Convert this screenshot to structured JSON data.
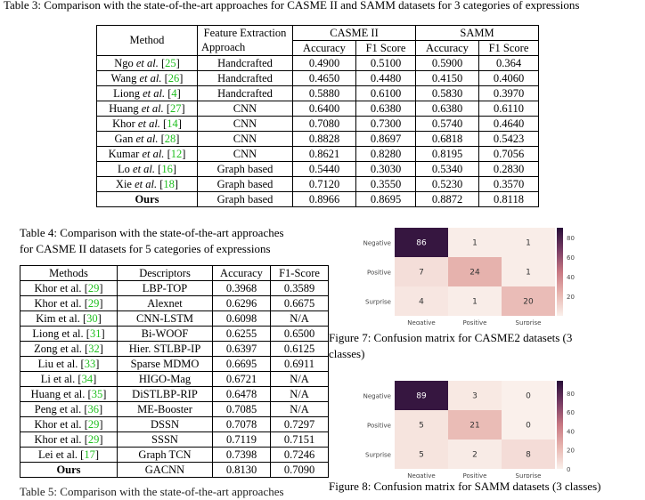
{
  "table3": {
    "caption": "Table 3: Comparison with the state-of-the-art approaches for CASME II and SAMM datasets for 3 categories of expressions",
    "header": {
      "method": "Method",
      "feature_line1": "Feature Extraction",
      "feature_line2": "Approach",
      "casme": "CASME II",
      "samm": "SAMM",
      "accuracy": "Accuracy",
      "f1": "F1 Score"
    },
    "rows": [
      {
        "name": "Ngo",
        "etal": "et al.",
        "cite": "25",
        "approach": "Handcrafted",
        "casme_acc": "0.4900",
        "casme_f1": "0.5100",
        "samm_acc": "0.5900",
        "samm_f1": "0.364"
      },
      {
        "name": "Wang",
        "etal": "et al.",
        "cite": "26",
        "approach": "Handcrafted",
        "casme_acc": "0.4650",
        "casme_f1": "0.4480",
        "samm_acc": "0.4150",
        "samm_f1": "0.4060"
      },
      {
        "name": "Liong",
        "etal": "et al.",
        "cite": "4",
        "approach": "Handcrafted",
        "casme_acc": "0.5880",
        "casme_f1": "0.6100",
        "samm_acc": "0.5830",
        "samm_f1": "0.3970"
      },
      {
        "name": "Huang",
        "etal": "et al.",
        "cite": "27",
        "approach": "CNN",
        "casme_acc": "0.6400",
        "casme_f1": "0.6380",
        "samm_acc": "0.6380",
        "samm_f1": "0.6110"
      },
      {
        "name": "Khor",
        "etal": "et al.",
        "cite": "14",
        "approach": "CNN",
        "casme_acc": "0.7080",
        "casme_f1": "0.7300",
        "samm_acc": "0.5740",
        "samm_f1": "0.4640"
      },
      {
        "name": "Gan",
        "etal": "et al.",
        "cite": "28",
        "approach": "CNN",
        "casme_acc": "0.8828",
        "casme_f1": "0.8697",
        "samm_acc": "0.6818",
        "samm_f1": "0.5423"
      },
      {
        "name": "Kumar",
        "etal": "et al.",
        "cite": "12",
        "approach": "CNN",
        "casme_acc": "0.8621",
        "casme_f1": "0.8280",
        "samm_acc": "0.8195",
        "samm_f1": "0.7056"
      },
      {
        "name": "Lo",
        "etal": "et al.",
        "cite": "16",
        "approach": "Graph based",
        "casme_acc": "0.5440",
        "casme_f1": "0.3030",
        "samm_acc": "0.5340",
        "samm_f1": "0.2830"
      },
      {
        "name": "Xie",
        "etal": "et al.",
        "cite": "18",
        "approach": "Graph based",
        "casme_acc": "0.7120",
        "casme_f1": "0.3550",
        "samm_acc": "0.5230",
        "samm_f1": "0.3570"
      },
      {
        "name": "Ours",
        "etal": "",
        "cite": "",
        "approach": "Graph based",
        "casme_acc": "0.8966",
        "casme_f1": "0.8695",
        "samm_acc": "0.8872",
        "samm_f1": "0.8118"
      }
    ]
  },
  "table4": {
    "caption_line1": "Table 4:  Comparison with the state-of-the-art approaches",
    "caption_line2": "for CASME II datasets for 5 categories of expressions",
    "header": {
      "methods": "Methods",
      "descriptors": "Descriptors",
      "accuracy": "Accuracy",
      "f1": "F1-Score"
    },
    "rows": [
      {
        "name": "Khor et al.",
        "cite": "29",
        "desc": "LBP-TOP",
        "acc": "0.3968",
        "f1": "0.3589"
      },
      {
        "name": "Khor et al.",
        "cite": "29",
        "desc": "Alexnet",
        "acc": "0.6296",
        "f1": "0.6675"
      },
      {
        "name": "Kim et al.",
        "cite": "30",
        "desc": "CNN-LSTM",
        "acc": "0.6098",
        "f1": "N/A"
      },
      {
        "name": "Liong et al.",
        "cite": "31",
        "desc": "Bi-WOOF",
        "acc": "0.6255",
        "f1": "0.6500"
      },
      {
        "name": "Zong et al.",
        "cite": "32",
        "desc": "Hier. STLBP-IP",
        "acc": "0.6397",
        "f1": "0.6125"
      },
      {
        "name": "Liu et al.",
        "cite": "33",
        "desc": "Sparse MDMO",
        "acc": "0.6695",
        "f1": "0.6911"
      },
      {
        "name": "Li et al.",
        "cite": "34",
        "desc": "HIGO-Mag",
        "acc": "0.6721",
        "f1": "N/A"
      },
      {
        "name": "Huang et al.",
        "cite": "35",
        "desc": "DiSTLBP-RIP",
        "acc": "0.6478",
        "f1": "N/A"
      },
      {
        "name": "Peng et al.",
        "cite": "36",
        "desc": "ME-Booster",
        "acc": "0.7085",
        "f1": "N/A"
      },
      {
        "name": "Khor et al.",
        "cite": "29",
        "desc": "DSSN",
        "acc": "0.7078",
        "f1": "0.7297"
      },
      {
        "name": "Khor et al.",
        "cite": "29",
        "desc": "SSSN",
        "acc": "0.7119",
        "f1": "0.7151"
      },
      {
        "name": "Lei et al.",
        "cite": "17",
        "desc": "Graph TCN",
        "acc": "0.7398",
        "f1": "0.7246"
      },
      {
        "name": "Ours",
        "cite": "",
        "desc": "GACNN",
        "acc": "0.8130",
        "f1": "0.7090"
      }
    ]
  },
  "figure7": {
    "caption_line1": "Figure 7:  Confusion matrix for CASME2 datasets (3",
    "caption_line2": "classes)",
    "labels": [
      "Negative",
      "Positive",
      "Surprise"
    ],
    "matrix": [
      [
        86,
        1,
        1
      ],
      [
        7,
        24,
        1
      ],
      [
        4,
        1,
        20
      ]
    ],
    "colorbar_ticks": [
      "80",
      "60",
      "40",
      "20"
    ]
  },
  "figure8": {
    "caption": "Figure 8: Confusion matrix for SAMM datasets (3 classes)",
    "labels": [
      "Negative",
      "Positive",
      "Surprise"
    ],
    "matrix": [
      [
        89,
        3,
        0
      ],
      [
        5,
        21,
        0
      ],
      [
        5,
        2,
        8
      ]
    ],
    "colorbar_ticks": [
      "80",
      "60",
      "40",
      "20",
      "0"
    ]
  },
  "footer_fragment": "Table 5:  Comparison with the state-of-the-art approaches"
}
